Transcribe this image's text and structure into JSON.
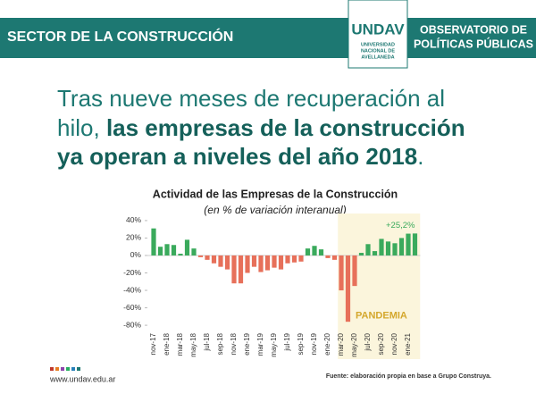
{
  "header": {
    "section": "SECTOR DE LA CONSTRUCCIÓN",
    "logo": "UNDAV",
    "university": [
      "UNIVERSIDAD",
      "NACIONAL DE",
      "AVELLANEDA"
    ],
    "observatory": [
      "OBSERVATORIO DE",
      "POLÍTICAS PÚBLICAS"
    ]
  },
  "headline": {
    "normal_1": "Tras nueve meses de recuperación al",
    "normal_2": "hilo,",
    "bold_1": "las empresas de la construcción",
    "bold_2": "ya operan a niveles del año 2018",
    "end": "."
  },
  "footer": {
    "website": "www.undav.edu.ar",
    "source": "Fuente: elaboración propia en base a Grupo Construya."
  },
  "chart_data": {
    "type": "bar",
    "title": "Actividad de las Empresas de la Construcción",
    "subtitle": "(en % de variación interanual)",
    "categories": [
      "nov-17",
      null,
      "ene-18",
      null,
      "mar-18",
      null,
      "may-18",
      null,
      "jul-18",
      null,
      "sep-18",
      null,
      "nov-18",
      null,
      "ene-19",
      null,
      "mar-19",
      null,
      "may-19",
      null,
      "jul-19",
      null,
      "sep-19",
      null,
      "nov-19",
      null,
      "ene-20",
      null,
      "mar-20",
      null,
      "may-20",
      null,
      "jul-20",
      null,
      "sep-20",
      null,
      "nov-20",
      null,
      "ene-21",
      null
    ],
    "values": [
      31,
      10,
      13,
      12,
      2,
      18,
      8,
      -2,
      -5,
      -9,
      -13,
      -16,
      -32,
      -32,
      -20,
      -13,
      -19,
      -17,
      -14,
      -16,
      -9,
      -8,
      -7,
      8,
      11,
      7,
      -3,
      -5,
      -40,
      -76,
      -35,
      3,
      13,
      5,
      19,
      16,
      14,
      20,
      25,
      25.2
    ],
    "value_labels": [
      null,
      null,
      null,
      null,
      null,
      null,
      null,
      null,
      null,
      null,
      null,
      null,
      null,
      null,
      null,
      null,
      null,
      null,
      null,
      null,
      null,
      null,
      null,
      null,
      null,
      null,
      null,
      null,
      null,
      null,
      null,
      null,
      null,
      null,
      null,
      null,
      null,
      null,
      null,
      "+25,2%"
    ],
    "positive_color": "#3aaa5c",
    "negative_color": "#e7705a",
    "ylim": [
      -84,
      44
    ],
    "yticks": [
      {
        "value": 40,
        "label": "40%"
      },
      {
        "value": 20,
        "label": "20%"
      },
      {
        "value": 0,
        "label": "0%"
      },
      {
        "value": -20,
        "label": "-20%"
      },
      {
        "value": -40,
        "label": "-40%"
      },
      {
        "value": -60,
        "label": "-60%"
      },
      {
        "value": -80,
        "label": "-80%"
      }
    ],
    "highlight": {
      "label": "PANDEMIA",
      "from": "mar-20",
      "color": "#fbf5dc"
    }
  }
}
